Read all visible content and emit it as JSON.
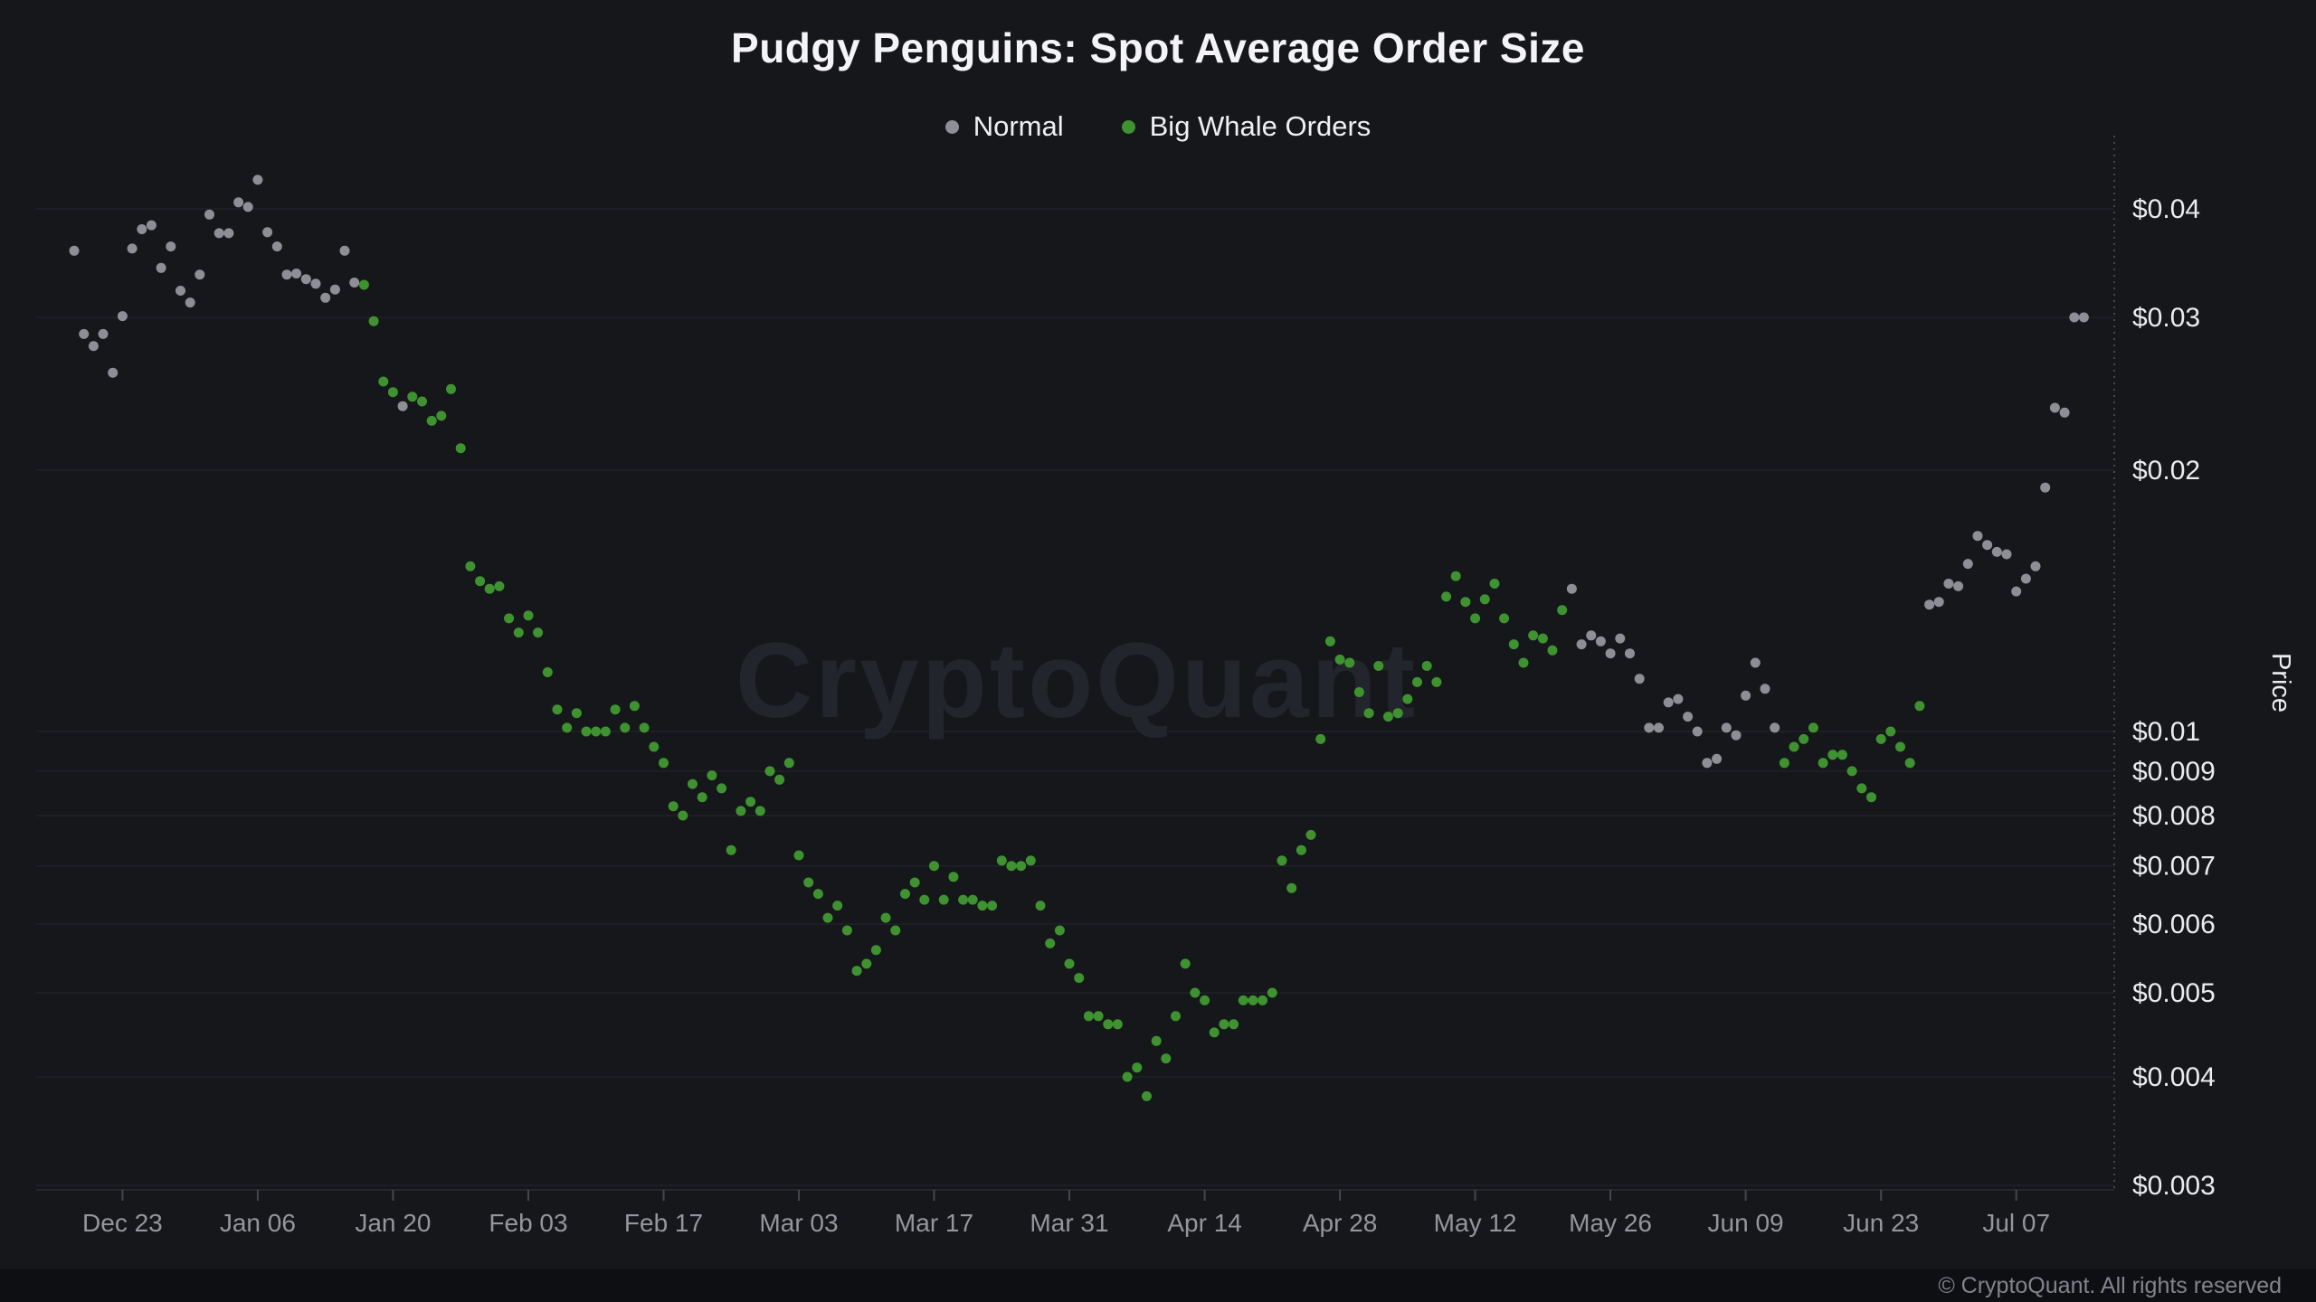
{
  "header": {
    "title": "Pudgy Penguins: Spot Average Order Size"
  },
  "legend": {
    "normal": "Normal",
    "whale": "Big Whale Orders"
  },
  "watermark": "CryptoQuant",
  "footer": {
    "copyright": "© CryptoQuant. All rights reserved"
  },
  "colors": {
    "background": "#16171b",
    "footer_bar": "#0e0f13",
    "normal_dot": "#8e8f96",
    "whale_dot": "#3e9330",
    "grid_line": "#212228",
    "axis_line": "#45464d",
    "x_label": "#95969c",
    "y_label": "#ebecee",
    "title_text": "#f4f4f6",
    "watermark_text": "#23252d"
  },
  "chart_data": {
    "type": "scatter",
    "title": "Pudgy Penguins: Spot Average Order Size",
    "xlabel": "",
    "ylabel": "Price",
    "y_scale": "log",
    "ylim": [
      0.003,
      0.045
    ],
    "grid": true,
    "legend_position": "top-center",
    "x_axis": {
      "start_date_day0": "Dec 18",
      "tick_days": [
        5,
        19,
        33,
        47,
        61,
        75,
        89,
        103,
        117,
        131,
        145,
        159,
        173,
        187,
        201
      ],
      "tick_labels": [
        "Dec 23",
        "Jan 06",
        "Jan 20",
        "Feb 03",
        "Feb 17",
        "Mar 03",
        "Mar 17",
        "Mar 31",
        "Apr 14",
        "Apr 28",
        "May 12",
        "May 26",
        "Jun 09",
        "Jun 23",
        "Jul 07"
      ]
    },
    "y_axis": {
      "label": "Price",
      "tick_values": [
        0.04,
        0.03,
        0.02,
        0.01,
        0.009,
        0.008,
        0.007,
        0.006,
        0.005,
        0.004,
        0.003
      ],
      "tick_labels": [
        "$0.04",
        "$0.03",
        "$0.02",
        "$0.01",
        "$0.009",
        "$0.008",
        "$0.007",
        "$0.006",
        "$0.005",
        "$0.004",
        "$0.003"
      ]
    },
    "series": [
      {
        "name": "Normal",
        "color_key": "normal_dot",
        "points": [
          [
            0,
            0.0358
          ],
          [
            1,
            0.0287
          ],
          [
            2,
            0.0278
          ],
          [
            3,
            0.0287
          ],
          [
            4,
            0.0259
          ],
          [
            5,
            0.0301
          ],
          [
            6,
            0.036
          ],
          [
            7,
            0.0379
          ],
          [
            8,
            0.0383
          ],
          [
            9,
            0.0342
          ],
          [
            10,
            0.0362
          ],
          [
            11,
            0.0322
          ],
          [
            12,
            0.0312
          ],
          [
            13,
            0.0336
          ],
          [
            14,
            0.0394
          ],
          [
            15,
            0.0375
          ],
          [
            16,
            0.0375
          ],
          [
            17,
            0.0407
          ],
          [
            18,
            0.0402
          ],
          [
            19,
            0.0432
          ],
          [
            20,
            0.0376
          ],
          [
            21,
            0.0362
          ],
          [
            22,
            0.0336
          ],
          [
            23,
            0.0337
          ],
          [
            24,
            0.0332
          ],
          [
            25,
            0.0328
          ],
          [
            26,
            0.0316
          ],
          [
            27,
            0.0323
          ],
          [
            28,
            0.0358
          ],
          [
            29,
            0.0329
          ],
          [
            34,
            0.0237
          ],
          [
            155,
            0.0146
          ],
          [
            156,
            0.0126
          ],
          [
            157,
            0.0129
          ],
          [
            158,
            0.0127
          ],
          [
            159,
            0.0123
          ],
          [
            160,
            0.0128
          ],
          [
            161,
            0.0123
          ],
          [
            162,
            0.0115
          ],
          [
            163,
            0.0101
          ],
          [
            164,
            0.0101
          ],
          [
            165,
            0.0108
          ],
          [
            166,
            0.0109
          ],
          [
            167,
            0.0104
          ],
          [
            168,
            0.01
          ],
          [
            169,
            0.0092
          ],
          [
            170,
            0.0093
          ],
          [
            171,
            0.0101
          ],
          [
            172,
            0.0099
          ],
          [
            173,
            0.011
          ],
          [
            174,
            0.012
          ],
          [
            175,
            0.0112
          ],
          [
            176,
            0.0101
          ],
          [
            192,
            0.014
          ],
          [
            193,
            0.0141
          ],
          [
            194,
            0.0148
          ],
          [
            195,
            0.0147
          ],
          [
            196,
            0.0156
          ],
          [
            197,
            0.0168
          ],
          [
            198,
            0.0164
          ],
          [
            199,
            0.0161
          ],
          [
            200,
            0.016
          ],
          [
            201,
            0.0145
          ],
          [
            202,
            0.015
          ],
          [
            203,
            0.0155
          ],
          [
            204,
            0.0191
          ],
          [
            205,
            0.0236
          ],
          [
            206,
            0.0233
          ],
          [
            207,
            0.03
          ],
          [
            208,
            0.03
          ]
        ]
      },
      {
        "name": "Big Whale Orders",
        "color_key": "whale_dot",
        "points": [
          [
            30,
            0.0327
          ],
          [
            31,
            0.0297
          ],
          [
            32,
            0.0253
          ],
          [
            33,
            0.0246
          ],
          [
            35,
            0.0243
          ],
          [
            36,
            0.024
          ],
          [
            37,
            0.0228
          ],
          [
            38,
            0.0231
          ],
          [
            39,
            0.0248
          ],
          [
            40,
            0.0212
          ],
          [
            41,
            0.0155
          ],
          [
            42,
            0.0149
          ],
          [
            43,
            0.0146
          ],
          [
            44,
            0.0147
          ],
          [
            45,
            0.0135
          ],
          [
            46,
            0.013
          ],
          [
            47,
            0.0136
          ],
          [
            48,
            0.013
          ],
          [
            49,
            0.0117
          ],
          [
            50,
            0.0106
          ],
          [
            51,
            0.0101
          ],
          [
            52,
            0.0105
          ],
          [
            53,
            0.01
          ],
          [
            54,
            0.01
          ],
          [
            55,
            0.01
          ],
          [
            56,
            0.0106
          ],
          [
            57,
            0.0101
          ],
          [
            58,
            0.0107
          ],
          [
            59,
            0.0101
          ],
          [
            60,
            0.0096
          ],
          [
            61,
            0.0092
          ],
          [
            62,
            0.0082
          ],
          [
            63,
            0.008
          ],
          [
            64,
            0.0087
          ],
          [
            65,
            0.0084
          ],
          [
            66,
            0.0089
          ],
          [
            67,
            0.0086
          ],
          [
            68,
            0.0073
          ],
          [
            69,
            0.0081
          ],
          [
            70,
            0.0083
          ],
          [
            71,
            0.0081
          ],
          [
            72,
            0.009
          ],
          [
            73,
            0.0088
          ],
          [
            74,
            0.0092
          ],
          [
            75,
            0.0072
          ],
          [
            76,
            0.0067
          ],
          [
            77,
            0.0065
          ],
          [
            78,
            0.0061
          ],
          [
            79,
            0.0063
          ],
          [
            80,
            0.0059
          ],
          [
            81,
            0.0053
          ],
          [
            82,
            0.0054
          ],
          [
            83,
            0.0056
          ],
          [
            84,
            0.0061
          ],
          [
            85,
            0.0059
          ],
          [
            86,
            0.0065
          ],
          [
            87,
            0.0067
          ],
          [
            88,
            0.0064
          ],
          [
            89,
            0.007
          ],
          [
            90,
            0.0064
          ],
          [
            91,
            0.0068
          ],
          [
            92,
            0.0064
          ],
          [
            93,
            0.0064
          ],
          [
            94,
            0.0063
          ],
          [
            95,
            0.0063
          ],
          [
            96,
            0.0071
          ],
          [
            97,
            0.007
          ],
          [
            98,
            0.007
          ],
          [
            99,
            0.0071
          ],
          [
            100,
            0.0063
          ],
          [
            101,
            0.0057
          ],
          [
            102,
            0.0059
          ],
          [
            103,
            0.0054
          ],
          [
            104,
            0.0052
          ],
          [
            105,
            0.0047
          ],
          [
            106,
            0.0047
          ],
          [
            107,
            0.0046
          ],
          [
            108,
            0.0046
          ],
          [
            109,
            0.004
          ],
          [
            110,
            0.0041
          ],
          [
            111,
            0.0038
          ],
          [
            112,
            0.0044
          ],
          [
            113,
            0.0042
          ],
          [
            114,
            0.0047
          ],
          [
            115,
            0.0054
          ],
          [
            116,
            0.005
          ],
          [
            117,
            0.0049
          ],
          [
            118,
            0.0045
          ],
          [
            119,
            0.0046
          ],
          [
            120,
            0.0046
          ],
          [
            121,
            0.0049
          ],
          [
            122,
            0.0049
          ],
          [
            123,
            0.0049
          ],
          [
            124,
            0.005
          ],
          [
            125,
            0.0071
          ],
          [
            126,
            0.0066
          ],
          [
            127,
            0.0073
          ],
          [
            128,
            0.0076
          ],
          [
            129,
            0.0098
          ],
          [
            130,
            0.0127
          ],
          [
            131,
            0.0121
          ],
          [
            132,
            0.012
          ],
          [
            133,
            0.0111
          ],
          [
            134,
            0.0105
          ],
          [
            135,
            0.0119
          ],
          [
            136,
            0.0104
          ],
          [
            137,
            0.0105
          ],
          [
            138,
            0.0109
          ],
          [
            139,
            0.0114
          ],
          [
            140,
            0.0119
          ],
          [
            141,
            0.0114
          ],
          [
            142,
            0.0143
          ],
          [
            143,
            0.0151
          ],
          [
            144,
            0.0141
          ],
          [
            145,
            0.0135
          ],
          [
            146,
            0.0142
          ],
          [
            147,
            0.0148
          ],
          [
            148,
            0.0135
          ],
          [
            149,
            0.0126
          ],
          [
            150,
            0.012
          ],
          [
            151,
            0.0129
          ],
          [
            152,
            0.0128
          ],
          [
            153,
            0.0124
          ],
          [
            154,
            0.0138
          ],
          [
            177,
            0.0092
          ],
          [
            178,
            0.0096
          ],
          [
            179,
            0.0098
          ],
          [
            180,
            0.0101
          ],
          [
            181,
            0.0092
          ],
          [
            182,
            0.0094
          ],
          [
            183,
            0.0094
          ],
          [
            184,
            0.009
          ],
          [
            185,
            0.0086
          ],
          [
            186,
            0.0084
          ],
          [
            187,
            0.0098
          ],
          [
            188,
            0.01
          ],
          [
            189,
            0.0096
          ],
          [
            190,
            0.0092
          ],
          [
            191,
            0.0107
          ]
        ]
      }
    ]
  }
}
